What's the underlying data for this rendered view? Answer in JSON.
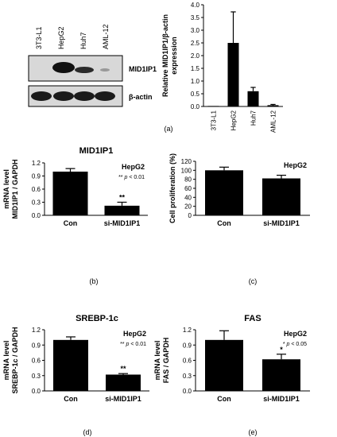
{
  "panel_labels": [
    "(a)",
    "(b)",
    "(c)",
    "(d)",
    "(e)"
  ],
  "western_blot": {
    "lanes": [
      "3T3-L1",
      "HepG2",
      "Huh7",
      "AML-12"
    ],
    "rows": [
      "MID1IP1",
      "β-actin"
    ]
  },
  "chart_data": [
    {
      "id": "a",
      "type": "bar",
      "title": "",
      "ylabel_lines": [
        "Relative MID1IP1/β-actin",
        "expression"
      ],
      "categories": [
        "3T3-L1",
        "HepG2",
        "Huh7",
        "AML-12"
      ],
      "values": [
        0.02,
        2.5,
        0.6,
        0.05
      ],
      "errors": [
        0.0,
        1.22,
        0.15,
        0.03
      ],
      "ylim": [
        0,
        4
      ],
      "yticks": [
        "0.0",
        "0.5",
        "1.0",
        "1.5",
        "2.0",
        "2.5",
        "3.0",
        "3.5",
        "4.0"
      ],
      "annotations": [],
      "stars": []
    },
    {
      "id": "b",
      "type": "bar",
      "title": "MID1IP1",
      "ylabel_lines": [
        "mRNA level",
        "MID1IP1 / GAPDH"
      ],
      "categories": [
        "Con",
        "si-MID1IP1"
      ],
      "values": [
        1.0,
        0.22
      ],
      "errors": [
        0.07,
        0.08
      ],
      "ylim": [
        0,
        1.2
      ],
      "yticks": [
        "0.0",
        "0.3",
        "0.6",
        "0.9",
        "1.2"
      ],
      "annotations": [
        "HepG2",
        "** p < 0.01"
      ],
      "stars": [
        "",
        "**"
      ]
    },
    {
      "id": "c",
      "type": "bar",
      "title": "",
      "ylabel_lines": [
        "Cell proliferation (%)"
      ],
      "categories": [
        "Con",
        "si-MID1IP1"
      ],
      "values": [
        100,
        82
      ],
      "errors": [
        7,
        7
      ],
      "ylim": [
        0,
        120
      ],
      "yticks": [
        "0",
        "20",
        "40",
        "60",
        "80",
        "100",
        "120"
      ],
      "annotations": [
        "HepG2"
      ],
      "stars": [
        "",
        ""
      ]
    },
    {
      "id": "d",
      "type": "bar",
      "title": "SREBP-1c",
      "ylabel_lines": [
        "mRNA level",
        "SREBP-1c / GAPDH"
      ],
      "categories": [
        "Con",
        "si-MID1IP1"
      ],
      "values": [
        1.0,
        0.32
      ],
      "errors": [
        0.06,
        0.02
      ],
      "ylim": [
        0,
        1.2
      ],
      "yticks": [
        "0.0",
        "0.3",
        "0.6",
        "0.9",
        "1.2"
      ],
      "annotations": [
        "HepG2",
        "** p < 0.01"
      ],
      "stars": [
        "",
        "**"
      ]
    },
    {
      "id": "e",
      "type": "bar",
      "title": "FAS",
      "ylabel_lines": [
        "mRNA level",
        "FAS / GAPDH"
      ],
      "categories": [
        "Con",
        "si-MID1IP1"
      ],
      "values": [
        1.0,
        0.62
      ],
      "errors": [
        0.18,
        0.1
      ],
      "ylim": [
        0,
        1.2
      ],
      "yticks": [
        "0.0",
        "0.3",
        "0.6",
        "0.9",
        "1.2"
      ],
      "annotations": [
        "HepG2",
        "* p < 0.05"
      ],
      "stars": [
        "",
        "*"
      ]
    }
  ]
}
